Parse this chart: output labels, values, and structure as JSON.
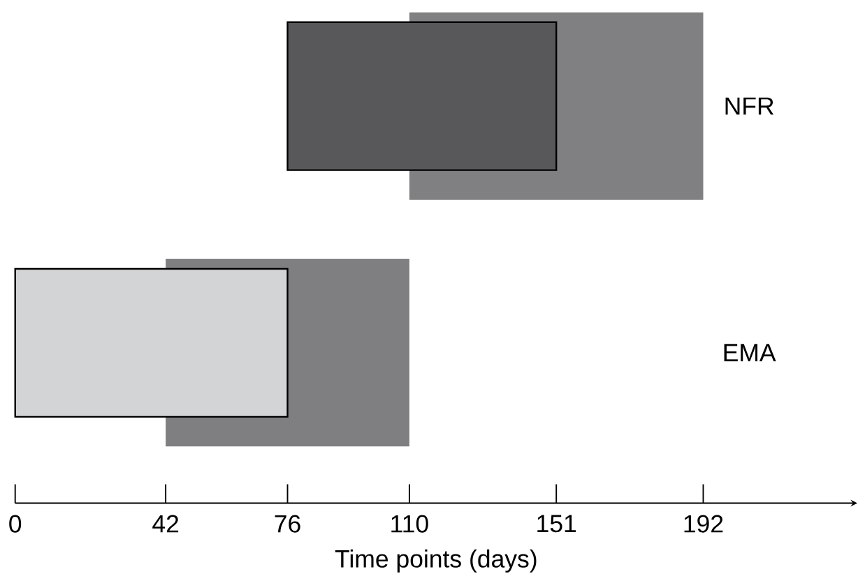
{
  "chart_data": {
    "type": "bar",
    "orientation": "horizontal",
    "categories": [
      "NFR",
      "EMA"
    ],
    "series": [
      {
        "base": [
          110,
          42
        ],
        "values": [
          82,
          68
        ],
        "colors": [
          "#808082",
          "#7f7f81"
        ]
      },
      {
        "base": [
          76,
          0
        ],
        "values": [
          75,
          76
        ],
        "colors": [
          "#58585a",
          "#d3d4d6"
        ]
      }
    ],
    "xlabel": "Time points (days)",
    "xlim": [
      0,
      235
    ],
    "xticks": [
      0,
      42,
      76,
      110,
      151,
      192
    ]
  }
}
